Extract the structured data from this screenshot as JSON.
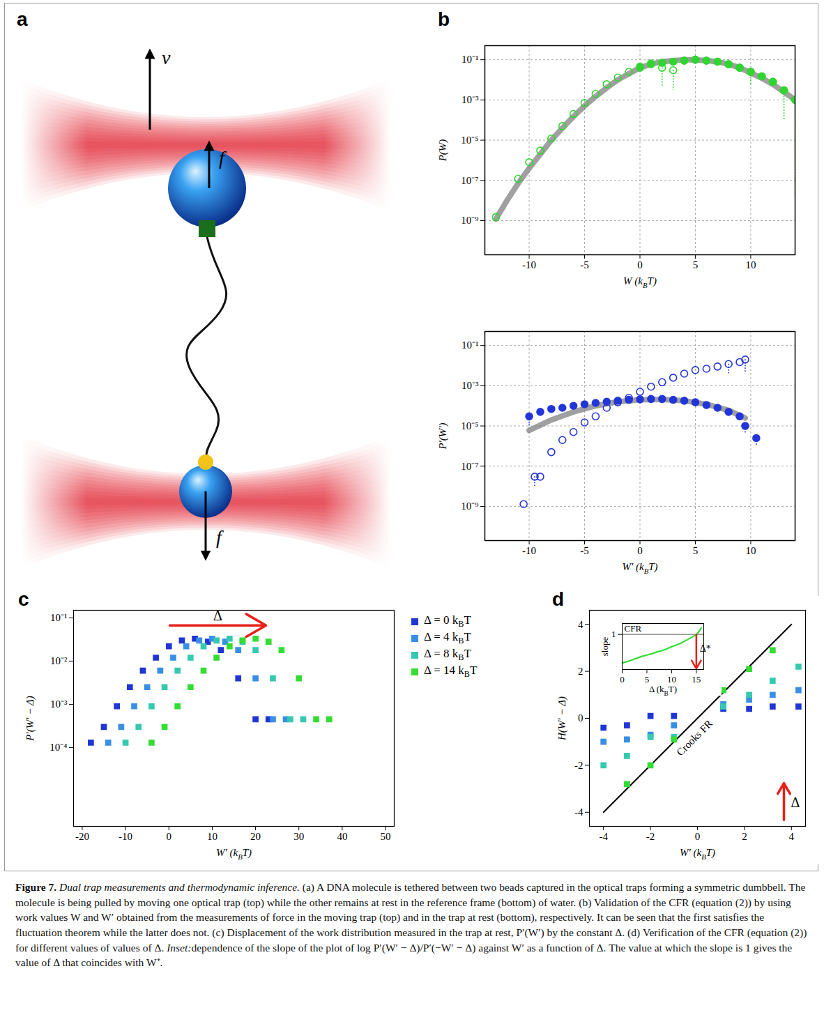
{
  "panel_labels": [
    "a",
    "b",
    "c",
    "d"
  ],
  "diagram": {
    "velocity_label": "v",
    "force_top_label": "f",
    "force_bottom_label": "f"
  },
  "chart_data": [
    {
      "type": "scatter",
      "log": "y",
      "grid": true,
      "xlabel": "W (kBT)",
      "ylabel": "P(W)",
      "xlim": [
        -14,
        14
      ],
      "ylim": [
        2e-11,
        0.5
      ],
      "xticks": [
        -10,
        -5,
        0,
        5,
        10
      ],
      "yticks": [
        {
          "value": 1e-09,
          "label": "10⁻⁹"
        },
        {
          "value": 1e-07,
          "label": "10⁻⁷"
        },
        {
          "value": 1e-05,
          "label": "10⁻⁵"
        },
        {
          "value": 0.001,
          "label": "10⁻³"
        },
        {
          "value": 0.1,
          "label": "10⁻¹"
        }
      ],
      "series": [
        {
          "type": "line",
          "line_style": "band",
          "color": "#808080",
          "x": [
            -13,
            -12,
            -11,
            -10,
            -9,
            -8,
            -7,
            -6,
            -5,
            -4,
            -3,
            -2,
            -1,
            0,
            1,
            2,
            3,
            4,
            5,
            6,
            7,
            8,
            9,
            10,
            11,
            12,
            13,
            14
          ],
          "values": [
            1.2e-09,
            1e-08,
            7e-08,
            4e-07,
            2e-06,
            1e-05,
            4e-05,
            0.00015,
            0.0005,
            0.0015,
            0.004,
            0.01,
            0.02,
            0.04,
            0.06,
            0.08,
            0.09,
            0.1,
            0.1,
            0.09,
            0.08,
            0.06,
            0.04,
            0.022,
            0.012,
            0.006,
            0.0025,
            0.001
          ]
        },
        {
          "type": "scatter",
          "marker": "circle-open",
          "color": "#2fd62f",
          "x": [
            -13,
            -11,
            -10,
            -9,
            -8,
            -7,
            -6,
            -5,
            -4,
            -3,
            -2,
            -1,
            0,
            1,
            2,
            3,
            4,
            5,
            6,
            7,
            8,
            9,
            10,
            11,
            12,
            13
          ],
          "values": [
            1.5e-09,
            1.2e-07,
            8e-07,
            3e-06,
            1.2e-05,
            5e-05,
            0.0002,
            0.0007,
            0.002,
            0.006,
            0.013,
            0.025,
            0.045,
            0.065,
            0.04,
            0.03,
            0.09,
            0.1,
            0.09,
            0.08,
            0.06,
            0.04,
            0.025,
            0.015,
            0.008,
            0.003
          ],
          "error_low": [
            null,
            null,
            null,
            null,
            null,
            null,
            null,
            null,
            null,
            null,
            null,
            null,
            null,
            null,
            0.005,
            0.003,
            null,
            null,
            null,
            null,
            null,
            null,
            0.005,
            null,
            null,
            0.0001
          ]
        },
        {
          "type": "scatter",
          "marker": "circle-filled",
          "color": "#2fd62f",
          "x": [
            0,
            1,
            2,
            3,
            4,
            5,
            6,
            7,
            8,
            9,
            10,
            11,
            12,
            13,
            14
          ],
          "values": [
            0.04,
            0.06,
            0.07,
            0.08,
            0.09,
            0.1,
            0.09,
            0.08,
            0.06,
            0.04,
            0.025,
            0.015,
            0.008,
            0.003,
            0.001
          ],
          "error_low": [
            null,
            null,
            null,
            null,
            null,
            null,
            null,
            null,
            null,
            null,
            null,
            null,
            null,
            null,
            1.5e-08
          ]
        }
      ]
    },
    {
      "type": "scatter",
      "log": "y",
      "grid": true,
      "xlabel": "W′ (kBT)",
      "ylabel": "P′(W′)",
      "xlim": [
        -14,
        14
      ],
      "ylim": [
        2e-11,
        0.5
      ],
      "xticks": [
        -10,
        -5,
        0,
        5,
        10
      ],
      "yticks": [
        {
          "value": 1e-09,
          "label": "10⁻⁹"
        },
        {
          "value": 1e-07,
          "label": "10⁻⁷"
        },
        {
          "value": 1e-05,
          "label": "10⁻⁵"
        },
        {
          "value": 0.001,
          "label": "10⁻³"
        },
        {
          "value": 0.1,
          "label": "10⁻¹"
        }
      ],
      "series": [
        {
          "type": "line",
          "line_style": "band",
          "color": "#808080",
          "x": [
            -10,
            -8,
            -6,
            -4,
            -2,
            0,
            2,
            4,
            6,
            8,
            9.5
          ],
          "values": [
            6e-06,
            2e-05,
            5e-05,
            0.0001,
            0.00016,
            0.0002,
            0.00021,
            0.00018,
            0.00012,
            6e-05,
            2.5e-05
          ]
        },
        {
          "type": "scatter",
          "marker": "circle-open",
          "color": "#2236d8",
          "x": [
            -10.5,
            -9.5,
            -9,
            -8,
            -7,
            -6,
            -5,
            -4,
            -3,
            -2,
            -1,
            0,
            1,
            2,
            3,
            4,
            5,
            6,
            7,
            8,
            9,
            9.5
          ],
          "values": [
            1.3e-09,
            3e-08,
            3e-08,
            5e-07,
            2e-06,
            5e-06,
            1.5e-05,
            3e-05,
            8e-05,
            0.00015,
            0.00025,
            0.0005,
            0.0009,
            0.0015,
            0.0025,
            0.004,
            0.006,
            0.007,
            0.009,
            0.012,
            0.015,
            0.02
          ],
          "error_low": [
            null,
            1e-08,
            null,
            null,
            null,
            null,
            null,
            null,
            null,
            null,
            null,
            null,
            null,
            null,
            null,
            null,
            null,
            null,
            null,
            0.004,
            null,
            0.004
          ]
        },
        {
          "type": "scatter",
          "marker": "circle-filled",
          "color": "#2236d8",
          "x": [
            -10,
            -9,
            -8,
            -7,
            -6,
            -5,
            -4,
            -3,
            -2,
            -1,
            0,
            1,
            2,
            3,
            4,
            5,
            6,
            7,
            8,
            9,
            9.5,
            10.5
          ],
          "values": [
            3e-05,
            5e-05,
            7e-05,
            8e-05,
            0.0001,
            0.00012,
            0.00014,
            0.00016,
            0.00018,
            0.0002,
            0.00021,
            0.00022,
            0.00022,
            0.0002,
            0.00018,
            0.00015,
            0.00011,
            8e-05,
            5e-05,
            3e-05,
            1e-05,
            2.5e-06
          ],
          "error_low": [
            1e-05,
            null,
            null,
            null,
            null,
            null,
            null,
            null,
            null,
            null,
            null,
            null,
            null,
            null,
            null,
            null,
            null,
            null,
            null,
            null,
            4e-06,
            1e-06
          ]
        }
      ]
    },
    {
      "type": "scatter",
      "log": "y",
      "legend": "right",
      "xlabel": "W′ (kBT)",
      "ylabel": "P′(W′ − Δ)",
      "xlim": [
        -22,
        52
      ],
      "ylim": [
        1.5e-06,
        0.15
      ],
      "xticks": [
        -20,
        -10,
        0,
        10,
        20,
        30,
        40,
        50
      ],
      "yticks": [
        {
          "value": 0.0001,
          "label": "10⁻⁴"
        },
        {
          "value": 0.001,
          "label": "10⁻³"
        },
        {
          "value": 0.01,
          "label": "10⁻²"
        },
        {
          "value": 0.1,
          "label": "10⁻¹"
        }
      ],
      "annotations": [
        {
          "label": "Δ"
        }
      ],
      "series": [
        {
          "name": "Δ = 0 kBT",
          "color": "#1f35d6",
          "marker": "square",
          "x": [
            -18,
            -15,
            -12,
            -9,
            -6,
            -3,
            0,
            3,
            6,
            9,
            12,
            16,
            20,
            23
          ],
          "values": [
            0.00013,
            0.0003,
            0.0009,
            0.0025,
            0.006,
            0.012,
            0.022,
            0.03,
            0.033,
            0.028,
            0.018,
            0.004,
            0.00045,
            0.00045
          ]
        },
        {
          "name": "Δ = 4 kBT",
          "color": "#3a8ee6",
          "marker": "square",
          "x": [
            -14,
            -11,
            -8,
            -5,
            -2,
            1,
            4,
            7,
            10,
            13,
            16,
            20,
            24,
            27
          ],
          "values": [
            0.00013,
            0.0003,
            0.0009,
            0.0025,
            0.006,
            0.012,
            0.022,
            0.03,
            0.033,
            0.028,
            0.018,
            0.004,
            0.00045,
            0.00045
          ]
        },
        {
          "name": "Δ = 8 kBT",
          "color": "#35c9b0",
          "marker": "square",
          "x": [
            -10,
            -7,
            -4,
            -1,
            2,
            5,
            8,
            11,
            14,
            17,
            20,
            24,
            28,
            31
          ],
          "values": [
            0.00013,
            0.0003,
            0.0009,
            0.0025,
            0.006,
            0.012,
            0.022,
            0.03,
            0.033,
            0.028,
            0.018,
            0.004,
            0.00045,
            0.00045
          ]
        },
        {
          "name": "Δ = 14 kBT",
          "color": "#33dd33",
          "marker": "square",
          "x": [
            -4,
            -1,
            2,
            5,
            8,
            11,
            14,
            17,
            20,
            23,
            26,
            30,
            34,
            37
          ],
          "values": [
            0.00013,
            0.0003,
            0.0009,
            0.0025,
            0.006,
            0.012,
            0.022,
            0.03,
            0.033,
            0.028,
            0.018,
            0.004,
            0.00045,
            0.00045
          ]
        }
      ]
    },
    {
      "type": "scatter",
      "xlabel": "W′ (kBT)",
      "ylabel": "H(W′ − Δ)",
      "xlim": [
        -4.6,
        4.6
      ],
      "ylim": [
        -4.6,
        4.6
      ],
      "xticks": [
        -4,
        -2,
        0,
        2,
        4
      ],
      "yticks": [
        -4,
        -2,
        0,
        2,
        4
      ],
      "annotations": [
        {
          "label": "Δ"
        }
      ],
      "reference_line": {
        "label": "Crooks FR",
        "x": [
          -4,
          4
        ],
        "values": [
          -4,
          4
        ]
      },
      "series": [
        {
          "color": "#1f35d6",
          "marker": "square",
          "x": [
            -4,
            -3,
            -2,
            -1,
            1.1,
            2.2,
            3.2,
            4.3
          ],
          "values": [
            -0.4,
            -0.3,
            0.1,
            0.1,
            0.4,
            0.4,
            0.5,
            0.5
          ]
        },
        {
          "color": "#3a8ee6",
          "marker": "square",
          "x": [
            -4,
            -3,
            -2,
            -1,
            1.1,
            2.2,
            3.2,
            4.3
          ],
          "values": [
            -1.0,
            -0.9,
            -0.7,
            -0.3,
            0.6,
            0.8,
            1.0,
            1.2
          ]
        },
        {
          "color": "#35c9b0",
          "marker": "square",
          "x": [
            -4,
            -3,
            -2,
            -1,
            1.1,
            2.2,
            3.2,
            4.3
          ],
          "values": [
            -2.0,
            -1.6,
            -0.8,
            -0.8,
            0.5,
            1.0,
            1.6,
            2.2
          ]
        },
        {
          "color": "#33dd33",
          "marker": "square",
          "x": [
            -3,
            -2,
            -1,
            1.1,
            2.2,
            3.2
          ],
          "values": [
            -2.8,
            -2.0,
            -0.9,
            1.2,
            2.1,
            2.9
          ]
        }
      ]
    },
    {
      "type": "line",
      "xlabel": "Δ (kBT)",
      "ylabel": "slope",
      "xlim": [
        0,
        16.5
      ],
      "ylim": [
        0.2,
        1.25
      ],
      "xticks": [
        0,
        5,
        10,
        15
      ],
      "yticks": [
        1
      ],
      "reference_line": {
        "label": "CFR",
        "value": 1
      },
      "annotations": [
        {
          "label": "Δ*",
          "x": 15
        }
      ],
      "series": [
        {
          "color": "#33dd33",
          "line_style": "solid",
          "x": [
            0,
            1,
            2,
            3,
            4,
            5,
            6,
            7,
            8,
            9,
            10,
            11,
            12,
            13,
            14,
            15,
            15.5,
            16
          ],
          "values": [
            0.35,
            0.38,
            0.42,
            0.46,
            0.5,
            0.53,
            0.56,
            0.6,
            0.63,
            0.67,
            0.72,
            0.76,
            0.81,
            0.87,
            0.93,
            1.0,
            1.06,
            1.15
          ]
        }
      ]
    }
  ],
  "caption": {
    "label": "Figure 7.",
    "title": "Dual trap measurements and thermodynamic inference.",
    "text": "(a) A DNA molecule is tethered between two beads captured in the optical traps forming a symmetric dumbbell. The molecule is being pulled by moving one optical trap (top) while the other remains at rest in the reference frame (bottom) of water. (b) Validation of the CFR (equation (2)) by using work values W and W′ obtained from the measurements of force in the moving trap (top) and in the trap at rest (bottom), respectively. It can be seen that the first satisfies the fluctuation theorem while the latter does not. (c) Displacement of the work distribution measured in the trap at rest, P′(W′) by the constant Δ. (d) Verification of the CFR (equation (2)) for different values of values of Δ.",
    "inset_label": "Inset:",
    "inset_text": "dependence of the slope of the plot of log P′(W′ − Δ)/P′(−W′ − Δ) against W′ as a function of Δ. The value at which the slope is 1 gives the value of Δ that coincides with W⁺."
  }
}
